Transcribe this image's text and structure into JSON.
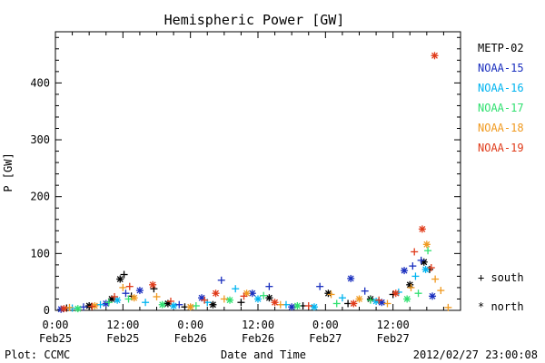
{
  "chart_data": {
    "type": "scatter",
    "title": "Hemispheric Power [GW]",
    "xlabel": "Date and Time",
    "ylabel": "P [GW]",
    "xlim_hours": [
      0,
      72
    ],
    "ylim": [
      0,
      490
    ],
    "yticks": [
      0,
      100,
      200,
      300,
      400
    ],
    "xticks": [
      {
        "hour": 0,
        "time": "0:00",
        "date": "Feb25"
      },
      {
        "hour": 12,
        "time": "12:00",
        "date": "Feb25"
      },
      {
        "hour": 24,
        "time": "0:00",
        "date": "Feb26"
      },
      {
        "hour": 36,
        "time": "12:00",
        "date": "Feb26"
      },
      {
        "hour": 48,
        "time": "0:00",
        "date": "Feb27"
      },
      {
        "hour": 60,
        "time": "12:00",
        "date": "Feb27"
      }
    ],
    "grid": false,
    "legend_position": "right",
    "series": [
      {
        "name": "METP-02",
        "color": "#000000",
        "points": [
          {
            "h": 2,
            "p": 4,
            "m": "plus"
          },
          {
            "h": 6,
            "p": 8,
            "m": "star"
          },
          {
            "h": 10,
            "p": 20,
            "m": "star"
          },
          {
            "h": 11.5,
            "p": 55,
            "m": "star"
          },
          {
            "h": 12.2,
            "p": 63,
            "m": "plus"
          },
          {
            "h": 13.5,
            "p": 25,
            "m": "plus"
          },
          {
            "h": 17.5,
            "p": 38,
            "m": "plus"
          },
          {
            "h": 20,
            "p": 12,
            "m": "star"
          },
          {
            "h": 23,
            "p": 6,
            "m": "plus"
          },
          {
            "h": 28,
            "p": 10,
            "m": "star"
          },
          {
            "h": 33,
            "p": 14,
            "m": "plus"
          },
          {
            "h": 38,
            "p": 22,
            "m": "star"
          },
          {
            "h": 44,
            "p": 8,
            "m": "plus"
          },
          {
            "h": 48.5,
            "p": 30,
            "m": "star"
          },
          {
            "h": 52,
            "p": 12,
            "m": "plus"
          },
          {
            "h": 56,
            "p": 20,
            "m": "star"
          },
          {
            "h": 60,
            "p": 28,
            "m": "plus"
          },
          {
            "h": 63,
            "p": 45,
            "m": "star"
          },
          {
            "h": 65.5,
            "p": 85,
            "m": "star"
          },
          {
            "h": 66.5,
            "p": 72,
            "m": "plus"
          }
        ]
      },
      {
        "name": "NOAA-15",
        "color": "#1a2fbf",
        "points": [
          {
            "h": 1,
            "p": 2,
            "m": "star"
          },
          {
            "h": 5,
            "p": 6,
            "m": "plus"
          },
          {
            "h": 9,
            "p": 12,
            "m": "star"
          },
          {
            "h": 12.5,
            "p": 30,
            "m": "plus"
          },
          {
            "h": 15,
            "p": 35,
            "m": "star"
          },
          {
            "h": 22,
            "p": 10,
            "m": "plus"
          },
          {
            "h": 26,
            "p": 22,
            "m": "star"
          },
          {
            "h": 29.5,
            "p": 53,
            "m": "plus"
          },
          {
            "h": 35,
            "p": 30,
            "m": "star"
          },
          {
            "h": 38,
            "p": 42,
            "m": "plus"
          },
          {
            "h": 42,
            "p": 6,
            "m": "star"
          },
          {
            "h": 47,
            "p": 42,
            "m": "plus"
          },
          {
            "h": 52.5,
            "p": 56,
            "m": "star"
          },
          {
            "h": 55,
            "p": 34,
            "m": "plus"
          },
          {
            "h": 58,
            "p": 14,
            "m": "star"
          },
          {
            "h": 62,
            "p": 70,
            "m": "star"
          },
          {
            "h": 63.5,
            "p": 78,
            "m": "plus"
          },
          {
            "h": 65,
            "p": 88,
            "m": "plus"
          },
          {
            "h": 67,
            "p": 25,
            "m": "star"
          }
        ]
      },
      {
        "name": "NOAA-16",
        "color": "#00b4f0",
        "points": [
          {
            "h": 3,
            "p": 4,
            "m": "plus"
          },
          {
            "h": 8,
            "p": 10,
            "m": "plus"
          },
          {
            "h": 11,
            "p": 18,
            "m": "star"
          },
          {
            "h": 16,
            "p": 14,
            "m": "plus"
          },
          {
            "h": 21,
            "p": 8,
            "m": "star"
          },
          {
            "h": 27,
            "p": 14,
            "m": "plus"
          },
          {
            "h": 32,
            "p": 38,
            "m": "plus"
          },
          {
            "h": 36,
            "p": 20,
            "m": "star"
          },
          {
            "h": 41,
            "p": 10,
            "m": "plus"
          },
          {
            "h": 46,
            "p": 6,
            "m": "star"
          },
          {
            "h": 51,
            "p": 22,
            "m": "plus"
          },
          {
            "h": 57,
            "p": 16,
            "m": "star"
          },
          {
            "h": 61,
            "p": 32,
            "m": "plus"
          },
          {
            "h": 64,
            "p": 60,
            "m": "plus"
          },
          {
            "h": 65.8,
            "p": 72,
            "m": "star"
          }
        ]
      },
      {
        "name": "NOAA-17",
        "color": "#30e070",
        "points": [
          {
            "h": 4,
            "p": 3,
            "m": "star"
          },
          {
            "h": 9.5,
            "p": 14,
            "m": "plus"
          },
          {
            "h": 13,
            "p": 20,
            "m": "plus"
          },
          {
            "h": 19,
            "p": 10,
            "m": "star"
          },
          {
            "h": 25,
            "p": 8,
            "m": "plus"
          },
          {
            "h": 31,
            "p": 18,
            "m": "star"
          },
          {
            "h": 37,
            "p": 26,
            "m": "plus"
          },
          {
            "h": 43,
            "p": 8,
            "m": "star"
          },
          {
            "h": 50,
            "p": 12,
            "m": "plus"
          },
          {
            "h": 56,
            "p": 18,
            "m": "plus"
          },
          {
            "h": 62.5,
            "p": 20,
            "m": "star"
          },
          {
            "h": 64.5,
            "p": 30,
            "m": "plus"
          },
          {
            "h": 66.2,
            "p": 105,
            "m": "plus"
          }
        ]
      },
      {
        "name": "NOAA-18",
        "color": "#f09a20",
        "points": [
          {
            "h": 2.5,
            "p": 5,
            "m": "plus"
          },
          {
            "h": 7,
            "p": 8,
            "m": "star"
          },
          {
            "h": 12,
            "p": 40,
            "m": "plus"
          },
          {
            "h": 14,
            "p": 22,
            "m": "star"
          },
          {
            "h": 18,
            "p": 24,
            "m": "plus"
          },
          {
            "h": 24,
            "p": 6,
            "m": "star"
          },
          {
            "h": 30,
            "p": 20,
            "m": "plus"
          },
          {
            "h": 34,
            "p": 30,
            "m": "star"
          },
          {
            "h": 40,
            "p": 10,
            "m": "plus"
          },
          {
            "h": 49,
            "p": 28,
            "m": "plus"
          },
          {
            "h": 54,
            "p": 20,
            "m": "star"
          },
          {
            "h": 59,
            "p": 12,
            "m": "plus"
          },
          {
            "h": 63.2,
            "p": 40,
            "m": "plus"
          },
          {
            "h": 66,
            "p": 116,
            "m": "star"
          },
          {
            "h": 67.5,
            "p": 55,
            "m": "plus"
          },
          {
            "h": 68.5,
            "p": 35,
            "m": "plus"
          },
          {
            "h": 69.8,
            "p": 5,
            "m": "plus"
          }
        ]
      },
      {
        "name": "NOAA-19",
        "color": "#e03b1a",
        "points": [
          {
            "h": 1.5,
            "p": 3,
            "m": "star"
          },
          {
            "h": 6.5,
            "p": 7,
            "m": "plus"
          },
          {
            "h": 10.5,
            "p": 24,
            "m": "plus"
          },
          {
            "h": 13.2,
            "p": 42,
            "m": "plus"
          },
          {
            "h": 17.3,
            "p": 45,
            "m": "star"
          },
          {
            "h": 20.5,
            "p": 16,
            "m": "plus"
          },
          {
            "h": 26.5,
            "p": 18,
            "m": "plus"
          },
          {
            "h": 28.5,
            "p": 30,
            "m": "star"
          },
          {
            "h": 33.5,
            "p": 25,
            "m": "plus"
          },
          {
            "h": 39,
            "p": 14,
            "m": "star"
          },
          {
            "h": 45,
            "p": 8,
            "m": "plus"
          },
          {
            "h": 53,
            "p": 12,
            "m": "star"
          },
          {
            "h": 57.5,
            "p": 18,
            "m": "plus"
          },
          {
            "h": 60.5,
            "p": 30,
            "m": "star"
          },
          {
            "h": 63.8,
            "p": 103,
            "m": "plus"
          },
          {
            "h": 65.2,
            "p": 143,
            "m": "star"
          },
          {
            "h": 66.8,
            "p": 75,
            "m": "plus"
          },
          {
            "h": 67.4,
            "p": 448,
            "m": "star"
          }
        ]
      }
    ],
    "marker_legend": [
      {
        "symbol": "+",
        "label": "south"
      },
      {
        "symbol": "*",
        "label": "north"
      }
    ]
  },
  "footer": {
    "left": "Plot: CCMC",
    "right": "2012/02/27 23:00:08"
  }
}
